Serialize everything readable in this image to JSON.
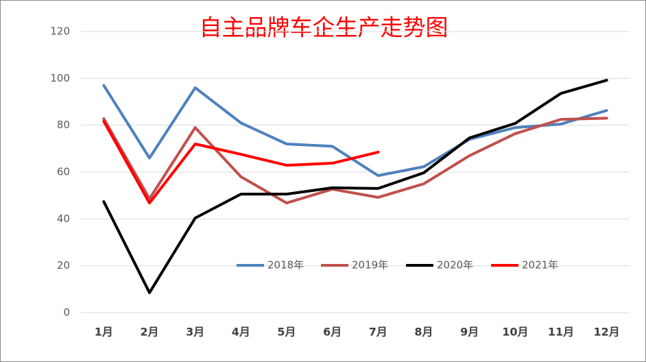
{
  "chart_data": {
    "type": "line",
    "title": "自主品牌车企生产走势图",
    "categories": [
      "1月",
      "2月",
      "3月",
      "4月",
      "5月",
      "6月",
      "7月",
      "8月",
      "9月",
      "10月",
      "11月",
      "12月"
    ],
    "series": [
      {
        "name": "2018年",
        "color": "#4f81bd",
        "values": [
          97,
          66,
          96,
          81,
          72,
          71,
          58.5,
          62.3,
          74,
          79,
          80.5,
          86.3
        ]
      },
      {
        "name": "2019年",
        "color": "#c0504d",
        "values": [
          82.8,
          48.6,
          79,
          58,
          46.8,
          52.7,
          49.2,
          55,
          67,
          76.4,
          82.5,
          83
        ]
      },
      {
        "name": "2020年",
        "color": "#000000",
        "values": [
          47.4,
          8.5,
          40.4,
          50.6,
          50.6,
          53.3,
          53,
          59.7,
          74.6,
          80.8,
          93.6,
          99.2
        ]
      },
      {
        "name": "2021年",
        "color": "#ff0000",
        "values": [
          81.7,
          46.8,
          72,
          67.6,
          62.9,
          63.8,
          68.5,
          null,
          null,
          null,
          null,
          null
        ]
      }
    ],
    "ylim": [
      0,
      120
    ],
    "yticks": [
      0,
      20,
      40,
      60,
      80,
      100,
      120
    ],
    "grid": true
  }
}
